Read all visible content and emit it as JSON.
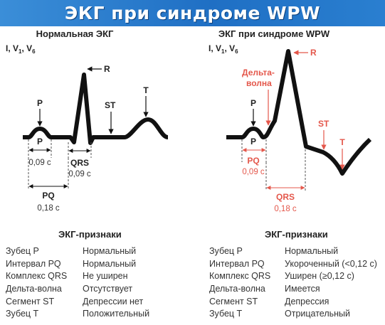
{
  "title": "ЭКГ при синдроме WPW",
  "normal": {
    "heading": "Нормальная ЭКГ",
    "leads": {
      "base": "I, V",
      "sub1": "1",
      "sep": ", V",
      "sub2": "6"
    },
    "labels": {
      "R": "R",
      "P_top": "P",
      "P_inner": "P",
      "ST": "ST",
      "T": "T",
      "p_dur": "0,09 с",
      "QRS": "QRS",
      "qrs_dur": "0,09 с",
      "PQ": "PQ",
      "pq_dur": "0,18 с"
    }
  },
  "wpw": {
    "heading": "ЭКГ при синдроме WPW",
    "leads": {
      "base": "I, V",
      "sub1": "1",
      "sep": ", V",
      "sub2": "6"
    },
    "labels": {
      "R": "R",
      "delta": [
        "Дельта-",
        "волна"
      ],
      "P_top": "P",
      "P_inner": "P",
      "ST": "ST",
      "T": "T",
      "PQ": "PQ",
      "pq_dur": "0,09 с",
      "QRS": "QRS",
      "qrs_dur": "0,18 с"
    }
  },
  "features_title": "ЭКГ-признаки",
  "normal_features": [
    {
      "name": "Зубец P",
      "value": "Нормальный"
    },
    {
      "name": "Интервал PQ",
      "value": "Нормальный"
    },
    {
      "name": "Комплекс QRS",
      "value": "Не уширен"
    },
    {
      "name": "Дельта-волна",
      "value": "Отсутствует"
    },
    {
      "name": "Сегмент ST",
      "value": "Депрессии нет"
    },
    {
      "name": "Зубец Т",
      "value": "Положительный"
    }
  ],
  "wpw_features": [
    {
      "name": "Зубец P",
      "value": "Нормальный"
    },
    {
      "name": "Интервал PQ",
      "value": "Укороченный (<0,12 с)"
    },
    {
      "name": "Комплекс QRS",
      "value": "Уширен (≥0,12 с)"
    },
    {
      "name": "Дельта-волна",
      "value": "Имеется"
    },
    {
      "name": "Сегмент ST",
      "value": "Депрессия"
    },
    {
      "name": "Зубец Т",
      "value": "Отрицательный"
    }
  ],
  "colors": {
    "accent": "#e4574b",
    "banner": "#1f6fc4",
    "trace": "#111111"
  }
}
